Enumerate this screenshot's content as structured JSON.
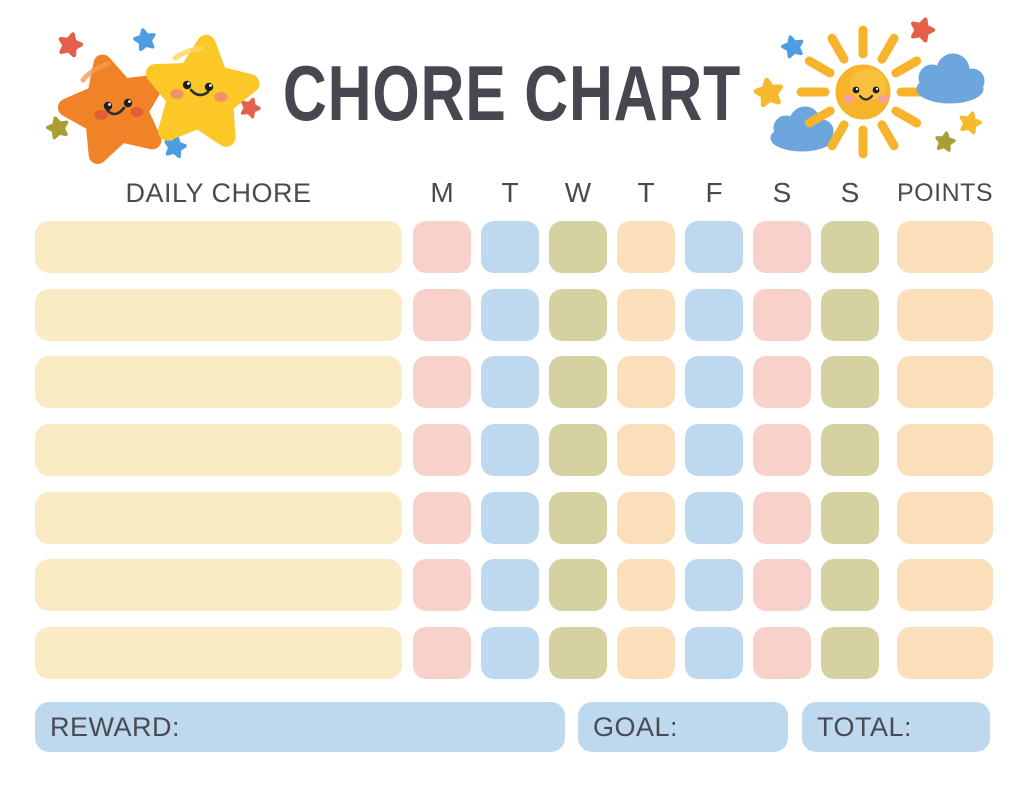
{
  "title": "CHORE CHART",
  "header": {
    "daily_chore_label": "DAILY CHORE",
    "day_labels": [
      "M",
      "T",
      "W",
      "T",
      "F",
      "S",
      "S"
    ],
    "points_label": "POINTS"
  },
  "grid": {
    "row_count": 7,
    "row_pattern": {
      "chore_color": "cream",
      "day_colors": [
        "pink",
        "blue",
        "olive",
        "peach",
        "blue",
        "pink",
        "olive"
      ],
      "points_color": "peach"
    },
    "rows": [
      {
        "chore": "",
        "days": [
          "",
          "",
          "",
          "",
          "",
          "",
          ""
        ],
        "points": ""
      },
      {
        "chore": "",
        "days": [
          "",
          "",
          "",
          "",
          "",
          "",
          ""
        ],
        "points": ""
      },
      {
        "chore": "",
        "days": [
          "",
          "",
          "",
          "",
          "",
          "",
          ""
        ],
        "points": ""
      },
      {
        "chore": "",
        "days": [
          "",
          "",
          "",
          "",
          "",
          "",
          ""
        ],
        "points": ""
      },
      {
        "chore": "",
        "days": [
          "",
          "",
          "",
          "",
          "",
          "",
          ""
        ],
        "points": ""
      },
      {
        "chore": "",
        "days": [
          "",
          "",
          "",
          "",
          "",
          "",
          ""
        ],
        "points": ""
      },
      {
        "chore": "",
        "days": [
          "",
          "",
          "",
          "",
          "",
          "",
          ""
        ],
        "points": ""
      }
    ]
  },
  "footer": {
    "reward_label": "REWARD:",
    "goal_label": "GOAL:",
    "total_label": "TOTAL:"
  },
  "colors": {
    "text": "#4A4A52",
    "cream": "#FAEBC5",
    "pink": "#F8D2CA",
    "blue": "#BDD8EF",
    "olive": "#D5D1A1",
    "peach": "#FBDFBA",
    "footer_box": "#BED8EE",
    "star_orange": "#F08227",
    "star_yellow": "#FBC827",
    "sun_yellow": "#F6B32B",
    "cloud_blue": "#6CA6DD",
    "mini_star_blue": "#4E9DE0",
    "mini_star_red": "#E5604A",
    "mini_star_olive": "#A89E33",
    "mini_star_yellow": "#F7B92E",
    "cheek_orange": "#E55C38",
    "cheek_salmon": "#F2906B",
    "cheek_pink": "#F0A09E"
  },
  "decorations": {
    "left": "two-smiling-stars",
    "right": "smiling-sun-with-clouds"
  }
}
